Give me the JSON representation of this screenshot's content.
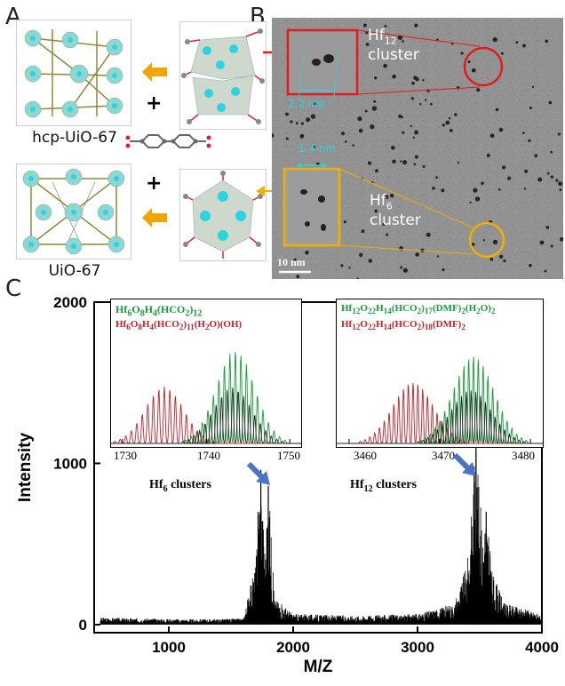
{
  "panel_labels": {
    "a": "A",
    "b": "B",
    "c": "C"
  },
  "panel_a": {
    "top_label": "hcp-UiO-67",
    "bottom_label": "UiO-67",
    "plus": "+"
  },
  "panel_b": {
    "hf12_label_main": "Hf",
    "hf12_label_sub": "12",
    "hf12_label_tail": "cluster",
    "hf12_size": "2.2 nm",
    "hf6_label_main": "Hf",
    "hf6_label_sub": "6",
    "hf6_label_tail": "cluster",
    "hf6_size": "1.4 nm",
    "scale_bar": "10 nm"
  },
  "panel_c": {
    "inset1": {
      "line1": "Hf6O8H4(HCO2)12",
      "line2": "Hf6O8H4(HCO2)11(H2O)(OH)",
      "ticks": [
        "1730",
        "1740",
        "1750"
      ],
      "caption": "Hf6 clusters"
    },
    "inset2": {
      "line1": "Hf12O22H14(HCO2)17(DMF)2(H2O)2",
      "line2": "Hf12O22H14(HCO2)18(DMF)2",
      "ticks": [
        "3460",
        "3470",
        "3480"
      ],
      "caption": "Hf12 clusters"
    }
  },
  "colors": {
    "green": "#1a9a3e",
    "red": "#c0242a",
    "orange": "#f0a500",
    "cyan": "#2ad4e0",
    "blue_arrow": "#4a74c8",
    "tem_red": "#e21b1b",
    "tem_orange": "#f0b000"
  },
  "chart_data": {
    "type": "line",
    "title": "",
    "xlabel": "M/Z",
    "ylabel": "Intensity",
    "xlim": [
      400,
      4000
    ],
    "ylim": [
      -50,
      2000
    ],
    "xticks": [
      1000,
      2000,
      3000,
      4000
    ],
    "yticks": [
      0,
      1000,
      2000
    ],
    "series": [
      {
        "x": [
          450,
          800,
          1200,
          1600,
          1650,
          1700,
          1720,
          1740,
          1760,
          1780,
          1800,
          1850,
          2000,
          2500,
          3000,
          3300,
          3400,
          3430,
          3450,
          3470,
          3500,
          3520,
          3550,
          3600,
          3700,
          4000
        ],
        "y": [
          40,
          35,
          30,
          35,
          200,
          350,
          700,
          900,
          600,
          420,
          850,
          150,
          60,
          50,
          60,
          120,
          350,
          600,
          900,
          1000,
          750,
          520,
          680,
          300,
          120,
          60
        ]
      }
    ],
    "annotations": [
      "Hf6 clusters",
      "Hf12 clusters"
    ]
  }
}
